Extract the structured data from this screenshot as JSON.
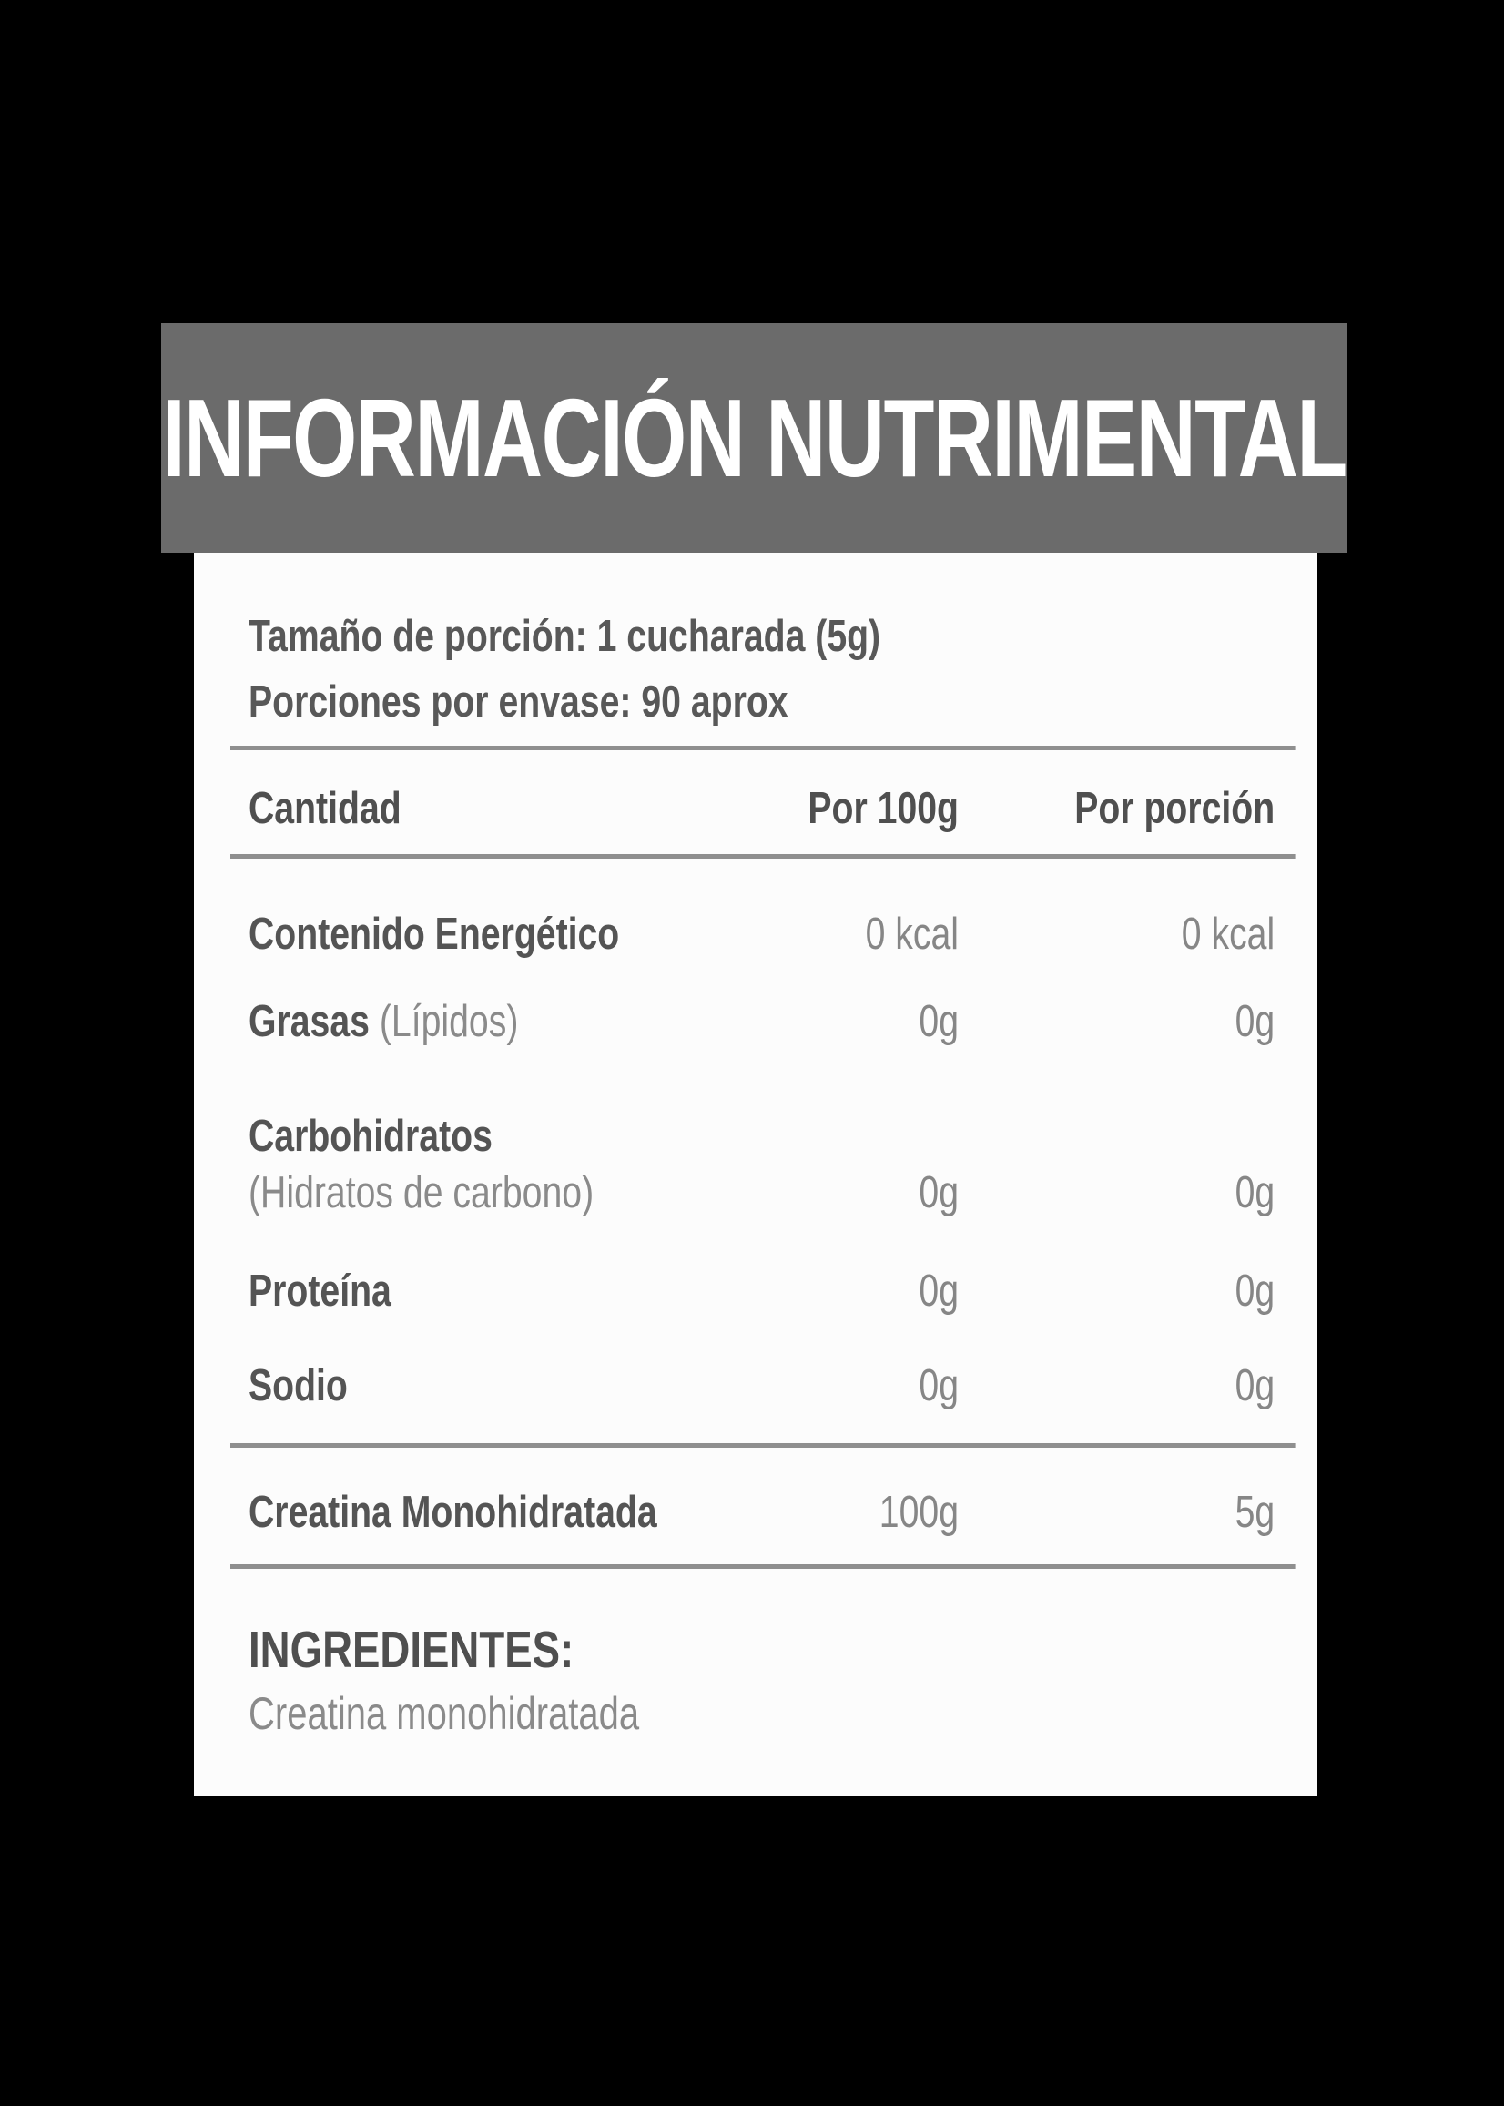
{
  "header": {
    "title": "INFORMACIÓN NUTRIMENTAL"
  },
  "serving": {
    "line1": "Tamaño de porción: 1 cucharada (5g)",
    "line2": "Porciones por envase: 90 aprox"
  },
  "table": {
    "columns": {
      "amount": "Cantidad",
      "per100g": "Por 100g",
      "per_portion": "Por porción"
    },
    "rows": [
      {
        "label": "Contenido Energético",
        "note": "",
        "per100g": "0 kcal",
        "per_portion": "0 kcal"
      },
      {
        "label": "Grasas",
        "note": "(Lípidos)",
        "per100g": "0g",
        "per_portion": "0g"
      },
      {
        "label": "Carbohidratos",
        "note": "(Hidratos de carbono)",
        "per100g": "0g",
        "per_portion": "0g"
      },
      {
        "label": "Proteína",
        "note": "",
        "per100g": "0g",
        "per_portion": "0g"
      },
      {
        "label": "Sodio",
        "note": "",
        "per100g": "0g",
        "per_portion": "0g"
      }
    ],
    "highlight_row": {
      "label": "Creatina Monohidratada",
      "per100g": "100g",
      "per_portion": "5g"
    }
  },
  "ingredients": {
    "heading": "INGREDIENTES:",
    "text": "Creatina monohidratada"
  },
  "colors": {
    "background": "#000000",
    "band": "#6b6b6b",
    "band_title": "#ffffff",
    "card": "#fcfcfc",
    "label_text": "#545454",
    "value_text": "#868686",
    "rule": "#8f8f8f"
  }
}
